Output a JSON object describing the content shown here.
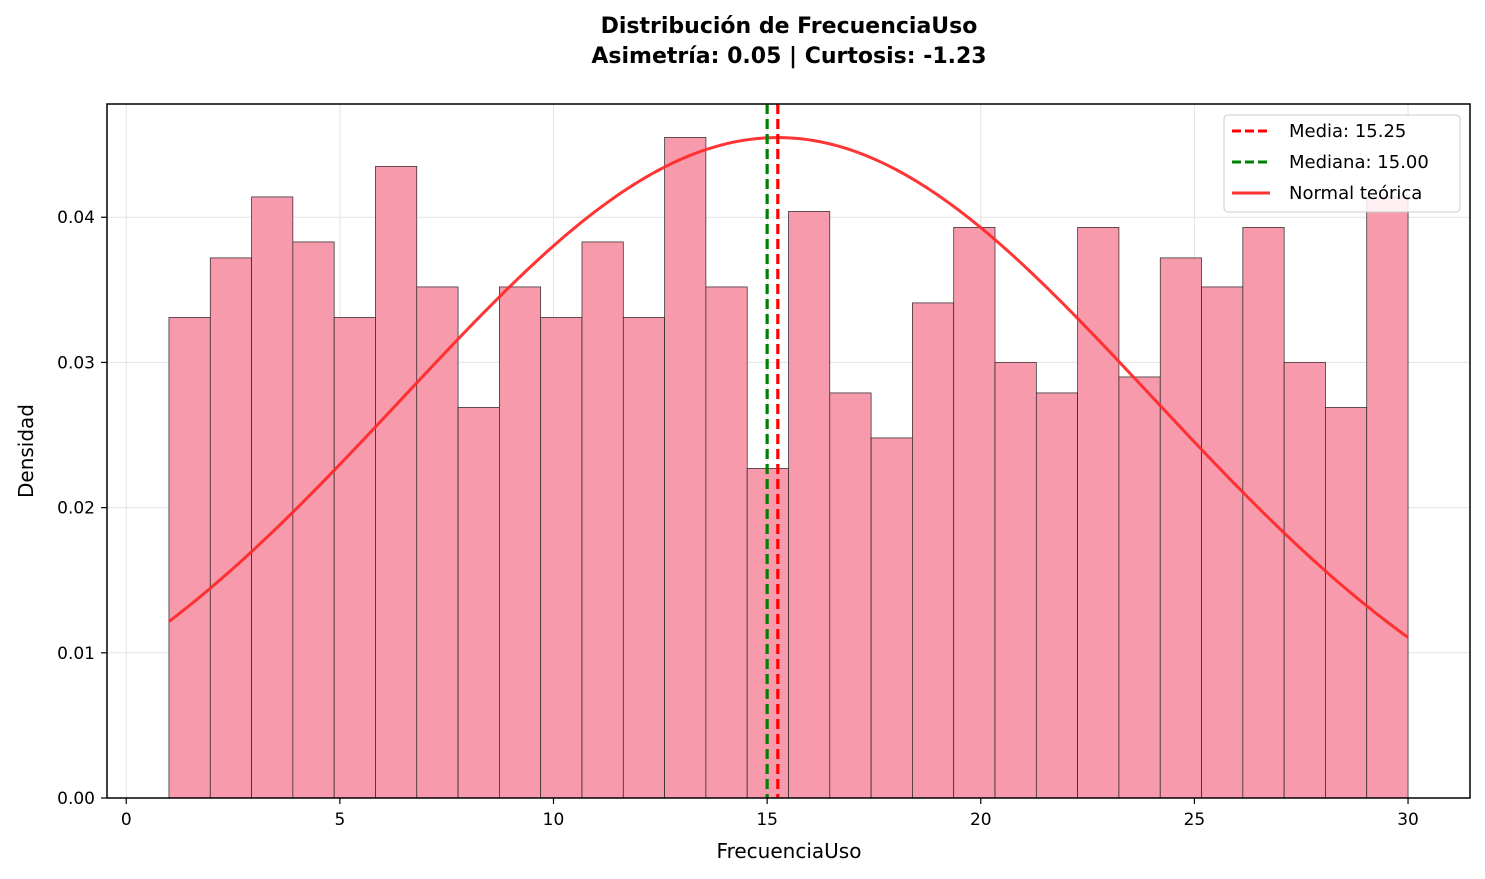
{
  "chart_data": {
    "type": "bar",
    "title": "Distribución de FrecuenciaUso",
    "subtitle": "Asimetría: 0.05 | Curtosis: -1.23",
    "xlabel": "FrecuenciaUso",
    "ylabel": "Densidad",
    "xlim": [
      -0.45,
      31.45
    ],
    "ylim": [
      0,
      0.0478
    ],
    "xticks": [
      0,
      5,
      10,
      15,
      20,
      25,
      30
    ],
    "xtick_labels": [
      "0",
      "5",
      "10",
      "15",
      "20",
      "25",
      "30"
    ],
    "yticks": [
      0.0,
      0.01,
      0.02,
      0.03,
      0.04
    ],
    "ytick_labels": [
      "0.00",
      "0.01",
      "0.02",
      "0.03",
      "0.04"
    ],
    "grid": true,
    "bar_color": "#f79aac",
    "bar_edge_color": "#222222",
    "histogram": {
      "bin_start": 1,
      "bin_end": 30,
      "bin_count": 30,
      "densities": [
        0.0331,
        0.0372,
        0.0414,
        0.0383,
        0.0331,
        0.0435,
        0.0352,
        0.0269,
        0.0352,
        0.0331,
        0.0383,
        0.0331,
        0.0455,
        0.0352,
        0.0227,
        0.0404,
        0.0279,
        0.0248,
        0.0341,
        0.0393,
        0.03,
        0.0279,
        0.0393,
        0.029,
        0.0372,
        0.0352,
        0.0393,
        0.03,
        0.0269,
        0.0414
      ]
    },
    "mean_line": {
      "value": 15.25,
      "label": "Media: 15.25",
      "color": "#ff0000",
      "style": "dashed"
    },
    "median_line": {
      "value": 15.0,
      "label": "Mediana: 15.00",
      "color": "#008000",
      "style": "dashed"
    },
    "normal_curve": {
      "label": "Normal teórica",
      "mu": 15.25,
      "sigma": 8.77,
      "x_start": 1,
      "x_end": 30,
      "color": "#ff2a2a"
    },
    "legend_position": "top-right"
  }
}
